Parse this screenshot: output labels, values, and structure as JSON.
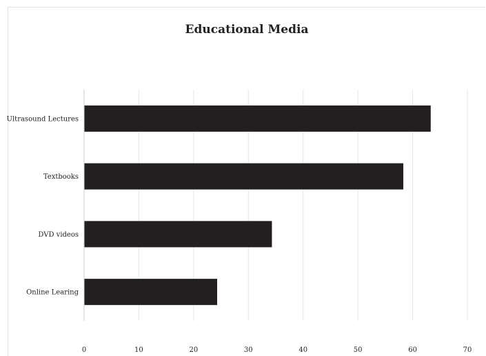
{
  "chart_data": {
    "type": "bar",
    "orientation": "horizontal",
    "title": "Educational Media",
    "categories": [
      "Ultrasound Lectures",
      "Textbooks",
      "DVD videos",
      "Online Learing"
    ],
    "values": [
      63.3,
      58.3,
      34.3,
      24.3
    ],
    "xlim": [
      0,
      70
    ],
    "xticks": [
      0,
      10,
      20,
      30,
      40,
      50,
      60,
      70
    ],
    "grid": true,
    "legend": "none",
    "bar_color": "#231f20",
    "gridline_color": "#e6e6e6"
  }
}
